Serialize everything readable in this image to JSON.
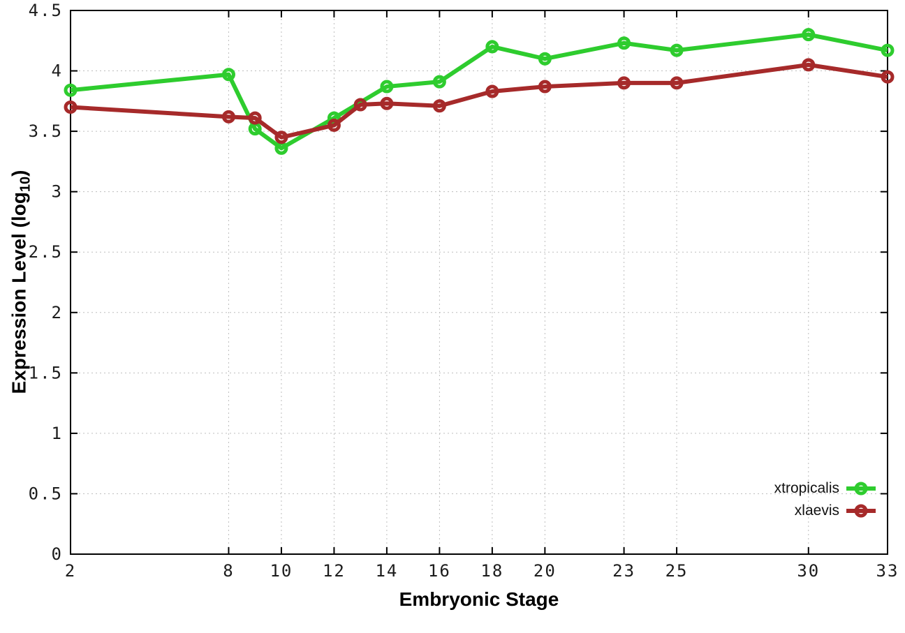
{
  "chart_data": {
    "type": "line",
    "title": "",
    "xlabel": "Embryonic Stage",
    "ylabel": "Expression Level (log10)",
    "ylabel_parts": {
      "main": "Expression Level (log",
      "sub": "10",
      "close": ")"
    },
    "xlim": [
      2,
      33
    ],
    "ylim": [
      0,
      4.5
    ],
    "grid": "dotted",
    "grid_color": "#bdbdbd",
    "axis_color": "#000000",
    "background": "#ffffff",
    "legend_position": "bottom-right-inside",
    "xticks": {
      "values": [
        2,
        8,
        10,
        12,
        14,
        16,
        18,
        20,
        23,
        25,
        30,
        33
      ],
      "labels": [
        "2",
        "8",
        "10",
        "12",
        "14",
        "16",
        "18",
        "20",
        "23",
        "25",
        "30",
        "33"
      ]
    },
    "yticks": {
      "values": [
        0,
        0.5,
        1,
        1.5,
        2,
        2.5,
        3,
        3.5,
        4,
        4.5
      ],
      "labels": [
        "0",
        "0.5",
        "1",
        "1.5",
        "2",
        "2.5",
        "3",
        "3.5",
        "4",
        "4.5"
      ]
    },
    "series": [
      {
        "name": "xtropicalis",
        "color": "#2ecc2e",
        "marker": "open-circle",
        "points": [
          [
            2,
            3.84
          ],
          [
            8,
            3.97
          ],
          [
            9,
            3.52
          ],
          [
            10,
            3.36
          ],
          [
            12,
            3.61
          ],
          [
            14,
            3.87
          ],
          [
            16,
            3.91
          ],
          [
            18,
            4.2
          ],
          [
            20,
            4.1
          ],
          [
            23,
            4.23
          ],
          [
            25,
            4.17
          ],
          [
            30,
            4.3
          ],
          [
            33,
            4.17
          ]
        ]
      },
      {
        "name": "xlaevis",
        "color": "#a62a2a",
        "marker": "open-circle",
        "points": [
          [
            2,
            3.7
          ],
          [
            8,
            3.62
          ],
          [
            9,
            3.61
          ],
          [
            10,
            3.45
          ],
          [
            12,
            3.55
          ],
          [
            13,
            3.72
          ],
          [
            14,
            3.73
          ],
          [
            16,
            3.71
          ],
          [
            18,
            3.83
          ],
          [
            20,
            3.87
          ],
          [
            23,
            3.9
          ],
          [
            25,
            3.9
          ],
          [
            30,
            4.05
          ],
          [
            33,
            3.95
          ]
        ]
      }
    ]
  }
}
